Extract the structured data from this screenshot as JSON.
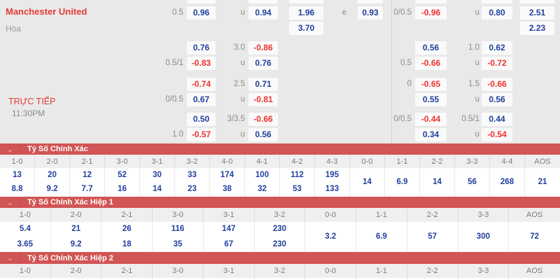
{
  "colors": {
    "panel_background": "#eae9e9",
    "odds_box_background": "#fafafa",
    "positive_odds_blue": "#20409e",
    "negative_odds_red": "#ee312d",
    "team_name_red": "#e23b36",
    "section_header_red": "#d15555",
    "label_gray": "#8b8b8b"
  },
  "match": {
    "home_team": "Manchester United",
    "draw_label": "Hòa",
    "live_label": "TRỰC TIẾP",
    "kickoff_time": "11:30PM"
  },
  "odds": {
    "left_rows": [
      {
        "hcp": "0.5",
        "v1": "0.96",
        "mid": "u",
        "v2": "0.94",
        "x12": "1.96",
        "e": "e",
        "ev": "0.93"
      },
      {
        "x12": "3.70"
      },
      {
        "v1": "0.76",
        "mid": "3.0",
        "v2": "-0.86"
      },
      {
        "hcp": "0.5/1",
        "v1": "-0.83",
        "mid": "u",
        "v2": "0.76"
      },
      {
        "v1": "-0.74",
        "mid": "2.5",
        "v2": "0.71"
      },
      {
        "hcp": "0/0.5",
        "v1": "0.67",
        "mid": "u",
        "v2": "-0.81"
      },
      {
        "v1": "0.50",
        "mid": "3/3.5",
        "v2": "-0.66"
      },
      {
        "hcp": "1.0",
        "v1": "-0.57",
        "mid": "u",
        "v2": "0.56"
      }
    ],
    "right_rows": [
      {
        "hcp": "0/0.5",
        "v1": "-0.96",
        "mid": "u",
        "v2": "0.80",
        "last": "2.51"
      },
      {
        "last": "2.23"
      },
      {
        "v1": "0.56",
        "mid": "1.0",
        "v2": "0.62"
      },
      {
        "hcp": "0.5",
        "v1": "-0.66",
        "mid": "u",
        "v2": "-0.72"
      },
      {
        "hcp": "0",
        "v1": "-0.65",
        "mid": "1.5",
        "v2": "-0.66"
      },
      {
        "v1": "0.55",
        "mid": "u",
        "v2": "0.56"
      },
      {
        "hcp": "0/0.5",
        "v1": "-0.44",
        "mid": "0.5/1",
        "v2": "0.44"
      },
      {
        "v1": "0.34",
        "mid": "u",
        "v2": "-0.54"
      }
    ]
  },
  "score_sections": [
    {
      "title": "Tỷ Số Chính Xác",
      "chevron_icon": "⌄",
      "columns": [
        {
          "label": "1-0",
          "values": [
            "13",
            "8.8"
          ]
        },
        {
          "label": "2-0",
          "values": [
            "20",
            "9.2"
          ]
        },
        {
          "label": "2-1",
          "values": [
            "12",
            "7.7"
          ]
        },
        {
          "label": "3-0",
          "values": [
            "52",
            "16"
          ]
        },
        {
          "label": "3-1",
          "values": [
            "30",
            "14"
          ]
        },
        {
          "label": "3-2",
          "values": [
            "33",
            "23"
          ]
        },
        {
          "label": "4-0",
          "values": [
            "174",
            "38"
          ]
        },
        {
          "label": "4-1",
          "values": [
            "100",
            "32"
          ]
        },
        {
          "label": "4-2",
          "values": [
            "112",
            "53"
          ]
        },
        {
          "label": "4-3",
          "values": [
            "195",
            "133"
          ]
        },
        {
          "label": "0-0",
          "values": [
            "14"
          ]
        },
        {
          "label": "1-1",
          "values": [
            "6.9"
          ]
        },
        {
          "label": "2-2",
          "values": [
            "14"
          ]
        },
        {
          "label": "3-3",
          "values": [
            "56"
          ]
        },
        {
          "label": "4-4",
          "values": [
            "268"
          ]
        },
        {
          "label": "AOS",
          "values": [
            "21"
          ]
        }
      ]
    },
    {
      "title": "Tỷ Số Chính Xác Hiệp 1",
      "chevron_icon": "⌄",
      "columns": [
        {
          "label": "1-0",
          "values": [
            "5.4",
            "3.65"
          ]
        },
        {
          "label": "2-0",
          "values": [
            "21",
            "9.2"
          ]
        },
        {
          "label": "2-1",
          "values": [
            "26",
            "18"
          ]
        },
        {
          "label": "3-0",
          "values": [
            "116",
            "35"
          ]
        },
        {
          "label": "3-1",
          "values": [
            "147",
            "67"
          ]
        },
        {
          "label": "3-2",
          "values": [
            "230",
            "230"
          ]
        },
        {
          "label": "0-0",
          "values": [
            "3.2"
          ]
        },
        {
          "label": "1-1",
          "values": [
            "6.9"
          ]
        },
        {
          "label": "2-2",
          "values": [
            "57"
          ]
        },
        {
          "label": "3-3",
          "values": [
            "300"
          ]
        },
        {
          "label": "AOS",
          "values": [
            "72"
          ]
        }
      ]
    },
    {
      "title": "Tỷ Số Chính Xác Hiệp 2",
      "chevron_icon": "⌄",
      "columns": [
        {
          "label": "1-0",
          "values": []
        },
        {
          "label": "2-0",
          "values": []
        },
        {
          "label": "2-1",
          "values": []
        },
        {
          "label": "3-0",
          "values": []
        },
        {
          "label": "3-1",
          "values": []
        },
        {
          "label": "3-2",
          "values": []
        },
        {
          "label": "0-0",
          "values": []
        },
        {
          "label": "1-1",
          "values": []
        },
        {
          "label": "2-2",
          "values": []
        },
        {
          "label": "3-3",
          "values": []
        },
        {
          "label": "AOS",
          "values": []
        }
      ]
    }
  ]
}
